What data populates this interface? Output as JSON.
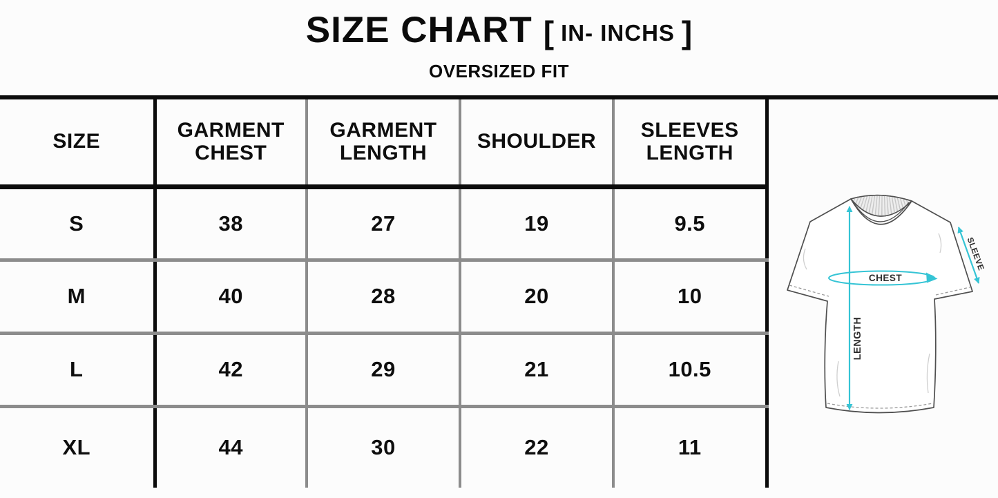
{
  "page": {
    "background": "#fcfcfc"
  },
  "title": {
    "main": "SIZE CHART",
    "bracket_open": "[",
    "unit_note": "IN- INCHS",
    "bracket_close": "]",
    "subtitle": "OVERSIZED FIT"
  },
  "table": {
    "columns": [
      "SIZE",
      "GARMENT\nCHEST",
      "GARMENT\nLENGTH",
      "SHOULDER",
      "SLEEVES\nLENGTH"
    ],
    "rows": [
      {
        "size": "S",
        "values": [
          "38",
          "27",
          "19",
          "9.5"
        ]
      },
      {
        "size": "M",
        "values": [
          "40",
          "28",
          "20",
          "10"
        ]
      },
      {
        "size": "L",
        "values": [
          "42",
          "29",
          "21",
          "10.5"
        ]
      },
      {
        "size": "XL",
        "values": [
          "44",
          "30",
          "22",
          "11"
        ]
      }
    ],
    "grid": {
      "strong_line_color": "#0c0c0c",
      "light_line_color": "#8c8c8c"
    }
  },
  "diagram": {
    "labels": {
      "chest": "CHEST",
      "length": "LENGTH",
      "sleeve": "SLEEVE"
    },
    "accent_color": "#35c4d5",
    "outline_color": "#4f4f4f"
  },
  "chart_data": {
    "type": "table",
    "title": "SIZE CHART [ IN- INCHS ]",
    "subtitle": "OVERSIZED FIT",
    "units": "inches",
    "columns": [
      "SIZE",
      "GARMENT CHEST",
      "GARMENT LENGTH",
      "SHOULDER",
      "SLEEVES LENGTH"
    ],
    "rows": [
      [
        "S",
        38,
        27,
        19,
        9.5
      ],
      [
        "M",
        40,
        28,
        20,
        10
      ],
      [
        "L",
        42,
        29,
        21,
        10.5
      ],
      [
        "XL",
        44,
        30,
        22,
        11
      ]
    ]
  }
}
